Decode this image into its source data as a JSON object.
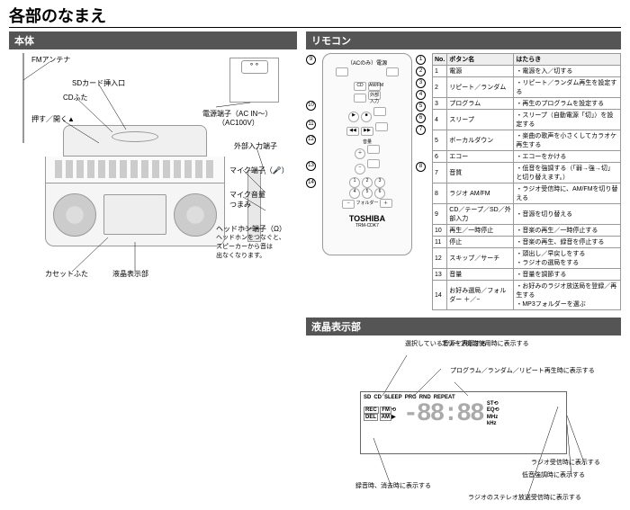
{
  "title": "各部のなまえ",
  "body": {
    "header": "本体",
    "labels": {
      "fm": "FMアンテナ",
      "sd": "SDカード挿入口",
      "cd": "CDふた",
      "push": "押す／開く▲",
      "psu1": "電源端子（AC IN〜）",
      "psu2": "（AC100V）",
      "ext": "外部入力端子",
      "mic": "マイク端子（🎤）",
      "vol": "マイク音量\nつまみ",
      "hp": "ヘッドホン端子（Ω）",
      "hpnote": "ヘッドホンをつなぐと、\nスピーカーから音は\n出なくなります。",
      "cas": "カセットふた",
      "lcd": "液晶表示部"
    }
  },
  "remote": {
    "header": "リモコン",
    "battery": "（ACのみ）電源",
    "brand": "TOSHIBA",
    "model": "TRM-CDK7",
    "cols": [
      "No.",
      "ボタン名",
      "はたらき"
    ],
    "buttons": {
      "r1": "CD",
      "r2": "AM/FM",
      "r3": "外部入力"
    },
    "rows": [
      [
        "1",
        "電源",
        "・電源を入／切する"
      ],
      [
        "2",
        "リピート／ランダム",
        "・リピート／ランダム再生を設定する"
      ],
      [
        "3",
        "プログラム",
        "・再生のプログラムを設定する"
      ],
      [
        "4",
        "スリープ",
        "・スリープ（自動電源「切」）を設定する"
      ],
      [
        "5",
        "ボーカルダウン",
        "・楽曲の歌声を小さくしてカラオケ再生する"
      ],
      [
        "6",
        "エコー",
        "・エコーをかける"
      ],
      [
        "7",
        "音質",
        "・低音を強調する（「弱→強→切」と切り替えます。）"
      ],
      [
        "8",
        "ラジオ AM/FM",
        "・ラジオ受信時に、AM/FMを切り替える"
      ],
      [
        "9",
        "CD／テープ／SD／外部入力",
        "・音源を切り替える"
      ],
      [
        "10",
        "再生／一時停止",
        "・音楽の再生／一時停止する"
      ],
      [
        "11",
        "停止",
        "・音楽の再生、録音を停止する"
      ],
      [
        "12",
        "スキップ／サーチ",
        "・頭出し／早戻しをする\n・ラジオの選局をする"
      ],
      [
        "13",
        "音量",
        "・音量を調節する"
      ],
      [
        "14",
        "お好み選局／フォルダー ＋／−",
        "・お好みのラジオ放送局を登録／再生する\n・MP3フォルダーを選ぶ"
      ]
    ]
  },
  "lcd": {
    "header": "液晶表示部",
    "top": [
      "SD",
      "CD",
      "SLEEP",
      "PRG",
      "RND",
      "REPEAT"
    ],
    "left": [
      "REC",
      "FM",
      "DEL",
      "AM"
    ],
    "right": [
      "ST",
      "EQ",
      "MHz",
      "kHz"
    ],
    "digits": "-88:88",
    "tri": "▶",
    "circ": "⟲",
    "notes": {
      "n1": "選択している音源を表示する",
      "n2": "スリープ機能使用時に表示する",
      "n3": "プログラム／ランダム／リピート再生時に表示する",
      "n4": "ラジオ受信時に表示する",
      "n5": "低音強調時に表示する",
      "n6": "録音時、消去時に表示する",
      "n7": "ラジオのステレオ放送受信時に表示する"
    }
  }
}
